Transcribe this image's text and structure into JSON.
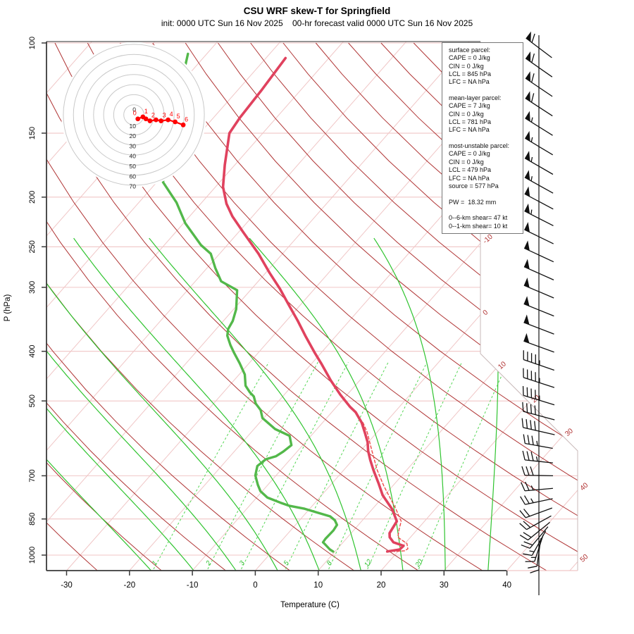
{
  "header": {
    "title": "CSU WRF skew-T for Springfield",
    "subtitle": "init: 0000 UTC Sun 16 Nov 2025    00-hr forecast valid 0000 UTC Sun 16 Nov 2025"
  },
  "axes": {
    "x_label": "Temperature (C)",
    "x_ticks": [
      -30,
      -20,
      -10,
      0,
      10,
      20,
      30,
      40
    ],
    "y_label": "P (hPa)",
    "y_ticks": [
      100,
      150,
      200,
      250,
      300,
      400,
      500,
      700,
      850,
      1000
    ]
  },
  "grid": {
    "pressure_lines_hpa": [
      100,
      150,
      200,
      250,
      300,
      400,
      500,
      700,
      850,
      1000
    ],
    "isotherms_every_c": 10,
    "isotherm_range_c": [
      -110,
      50
    ],
    "isotherm_edge_labels_c": [
      -10,
      0,
      10,
      20,
      30,
      40,
      50
    ],
    "dry_adiabats_theta_c": [
      -120,
      -110,
      -100,
      -90,
      -80,
      -70,
      -60,
      -50,
      -40,
      -30,
      -20,
      -10,
      0,
      10,
      20,
      30,
      40,
      50,
      60,
      70,
      80,
      90,
      100,
      110,
      120,
      130,
      140,
      150,
      160,
      170,
      180,
      190,
      200
    ],
    "moist_adiabats_thetaw_c": [
      -21,
      -14,
      -7,
      0,
      7,
      14,
      21,
      28,
      35
    ],
    "moist_adiabat_top_hpa": 242,
    "mixing_ratio_lines_gkg": [
      1,
      2,
      3,
      5,
      8,
      12,
      20
    ],
    "mixing_ratio_top_hpa": 420
  },
  "colors": {
    "axis": "#3a3a3a",
    "isobar_isotherm_pink": "#f0c6c6",
    "dry_adiabat_red": "#b03535",
    "isotherm_label_red": "#b03030",
    "moist_adiabat_green": "#2fc42f",
    "mixing_ratio_green": "#55d655",
    "mixing_label_green": "#2fbf2f",
    "temperature_curve": "#e0425e",
    "parcel_dashed": "#f04848",
    "dewpoint_curve": "#53b84a",
    "hodograph_ring": "#c9c9c9",
    "hodograph_trace": "#ff0000",
    "wind_barb": "#111111",
    "boundary": "#c8b8b8"
  },
  "info_box": {
    "lines": [
      "surface parcel:",
      "CAPE = 0 J/kg",
      "CIN = 0 J/kg",
      "LCL = 845 hPa",
      "LFC = NA hPa",
      "",
      "mean-layer parcel:",
      "CAPE = 7 J/kg",
      "CIN = 0 J/kg",
      "LCL = 781 hPa",
      "LFC = NA hPa",
      "",
      "most-unstable parcel:",
      "CAPE = 0 J/kg",
      "CIN = 0 J/kg",
      "LCL = 479 hPa",
      "LFC = NA hPa",
      "source = 577 hPa",
      "",
      "PW =  18.32 mm",
      "",
      "0--6-km shear= 47 kt",
      "0--1-km shear= 10 kt"
    ]
  },
  "chart_data": {
    "type": "skew-t-log-p sounding",
    "station": "Springfield",
    "temperature_profile_p_T": [
      [
        107,
        -66.9
      ],
      [
        124,
        -66.2
      ],
      [
        140,
        -65.8
      ],
      [
        150,
        -65.3
      ],
      [
        173,
        -61.6
      ],
      [
        191,
        -58.8
      ],
      [
        206,
        -55.9
      ],
      [
        218,
        -53.2
      ],
      [
        234,
        -49.3
      ],
      [
        258,
        -43.8
      ],
      [
        281,
        -39.4
      ],
      [
        302,
        -35.5
      ],
      [
        325,
        -31.8
      ],
      [
        348,
        -28.3
      ],
      [
        373,
        -24.9
      ],
      [
        402,
        -21.1
      ],
      [
        424,
        -18.3
      ],
      [
        456,
        -14.6
      ],
      [
        486,
        -11.1
      ],
      [
        513,
        -7.9
      ],
      [
        526,
        -6.2
      ],
      [
        551,
        -3.8
      ],
      [
        575,
        -2.0
      ],
      [
        602,
        -0.1
      ],
      [
        626,
        1.2
      ],
      [
        652,
        2.8
      ],
      [
        682,
        4.7
      ],
      [
        726,
        7.5
      ],
      [
        764,
        9.7
      ],
      [
        814,
        13.2
      ],
      [
        859,
        15.6
      ],
      [
        906,
        16.1
      ],
      [
        923,
        16.7
      ],
      [
        944,
        18.0
      ],
      [
        959,
        20.1
      ],
      [
        975,
        20.0
      ],
      [
        984,
        18.3
      ]
    ],
    "dewpoint_profile_p_Td": [
      [
        105,
        -83
      ],
      [
        112,
        -81.5
      ],
      [
        150,
        -74.5
      ],
      [
        187,
        -69
      ],
      [
        205,
        -64
      ],
      [
        225,
        -59.7
      ],
      [
        248,
        -54.2
      ],
      [
        258,
        -51.4
      ],
      [
        275,
        -48.7
      ],
      [
        292,
        -45.9
      ],
      [
        304,
        -42.1
      ],
      [
        331,
        -39.6
      ],
      [
        349,
        -38.5
      ],
      [
        362,
        -38.1
      ],
      [
        373,
        -37.3
      ],
      [
        389,
        -35.5
      ],
      [
        403,
        -33.8
      ],
      [
        422,
        -31.5
      ],
      [
        444,
        -29.1
      ],
      [
        467,
        -27.4
      ],
      [
        481,
        -25.8
      ],
      [
        490,
        -24.6
      ],
      [
        506,
        -23.3
      ],
      [
        521,
        -21.6
      ],
      [
        540,
        -20.2
      ],
      [
        567,
        -16.7
      ],
      [
        585,
        -13.4
      ],
      [
        610,
        -11.8
      ],
      [
        628,
        -12.2
      ],
      [
        641,
        -12.7
      ],
      [
        650,
        -13.9
      ],
      [
        670,
        -14.3
      ],
      [
        699,
        -13.3
      ],
      [
        729,
        -11.6
      ],
      [
        750,
        -10.3
      ],
      [
        772,
        -8.3
      ],
      [
        790,
        -5.5
      ],
      [
        801,
        -3.7
      ],
      [
        812,
        -0.8
      ],
      [
        828,
        2.1
      ],
      [
        840,
        4.3
      ],
      [
        855,
        5.6
      ],
      [
        873,
        6.6
      ],
      [
        895,
        6.8
      ],
      [
        929,
        6.7
      ],
      [
        944,
        6.8
      ],
      [
        951,
        7.3
      ],
      [
        975,
        8.9
      ],
      [
        984,
        9.7
      ]
    ],
    "parcel_virtual_dashed_p_T": [
      [
        551,
        -3.6
      ],
      [
        575,
        -1.6
      ],
      [
        626,
        1.8
      ],
      [
        682,
        5.3
      ],
      [
        733,
        8.6
      ],
      [
        814,
        13.8
      ],
      [
        859,
        16.3
      ],
      [
        891,
        17.1
      ],
      [
        923,
        18.0
      ],
      [
        949,
        20.3
      ],
      [
        972,
        21.2
      ],
      [
        981,
        21.0
      ],
      [
        984,
        19.4
      ]
    ],
    "hodograph": {
      "ring_interval_kt": 10,
      "ring_labels": [
        0,
        10,
        20,
        30,
        40,
        50,
        60,
        70
      ],
      "trace_u_v_kt": [
        {
          "km": "0",
          "u": 4,
          "v": -4
        },
        {
          "km": "1",
          "u": 9,
          "v": -2
        },
        {
          "km": "1.5",
          "u": 12,
          "v": -4
        },
        {
          "km": "2",
          "u": 16,
          "v": -6
        },
        {
          "km": "2.5",
          "u": 22,
          "v": -5
        },
        {
          "km": "3",
          "u": 27,
          "v": -6
        },
        {
          "km": "4",
          "u": 34,
          "v": -5
        },
        {
          "km": "5",
          "u": 41,
          "v": -7
        },
        {
          "km": "6",
          "u": 49,
          "v": -10
        }
      ],
      "labeled_points": [
        "0",
        "1",
        "2",
        "3",
        "4",
        "5",
        "6"
      ]
    },
    "wind_barbs_y_spd_ang": [
      [
        68,
        60,
        217
      ],
      [
        96,
        60,
        215
      ],
      [
        124,
        60,
        214
      ],
      [
        152,
        60,
        213
      ],
      [
        180,
        55,
        212
      ],
      [
        208,
        55,
        211
      ],
      [
        236,
        55,
        210
      ],
      [
        263,
        55,
        209
      ],
      [
        286,
        50,
        208
      ],
      [
        310,
        55,
        207
      ],
      [
        336,
        50,
        206
      ],
      [
        362,
        50,
        205
      ],
      [
        388,
        50,
        204
      ],
      [
        414,
        50,
        203
      ],
      [
        440,
        50,
        202
      ],
      [
        466,
        50,
        201
      ],
      [
        492,
        50,
        200
      ],
      [
        518,
        45,
        199
      ],
      [
        543,
        45,
        198
      ],
      [
        568,
        45,
        197
      ],
      [
        590,
        40,
        195
      ],
      [
        612,
        40,
        193
      ],
      [
        633,
        35,
        190
      ],
      [
        655,
        35,
        186
      ],
      [
        675,
        30,
        181
      ],
      [
        695,
        25,
        175
      ],
      [
        712,
        25,
        168
      ],
      [
        728,
        20,
        160
      ],
      [
        742,
        20,
        151
      ],
      [
        754,
        18,
        141
      ],
      [
        763,
        18,
        130
      ],
      [
        771,
        15,
        119
      ],
      [
        778,
        15,
        108
      ],
      [
        784,
        12,
        98
      ],
      [
        789,
        10,
        90
      ]
    ]
  }
}
